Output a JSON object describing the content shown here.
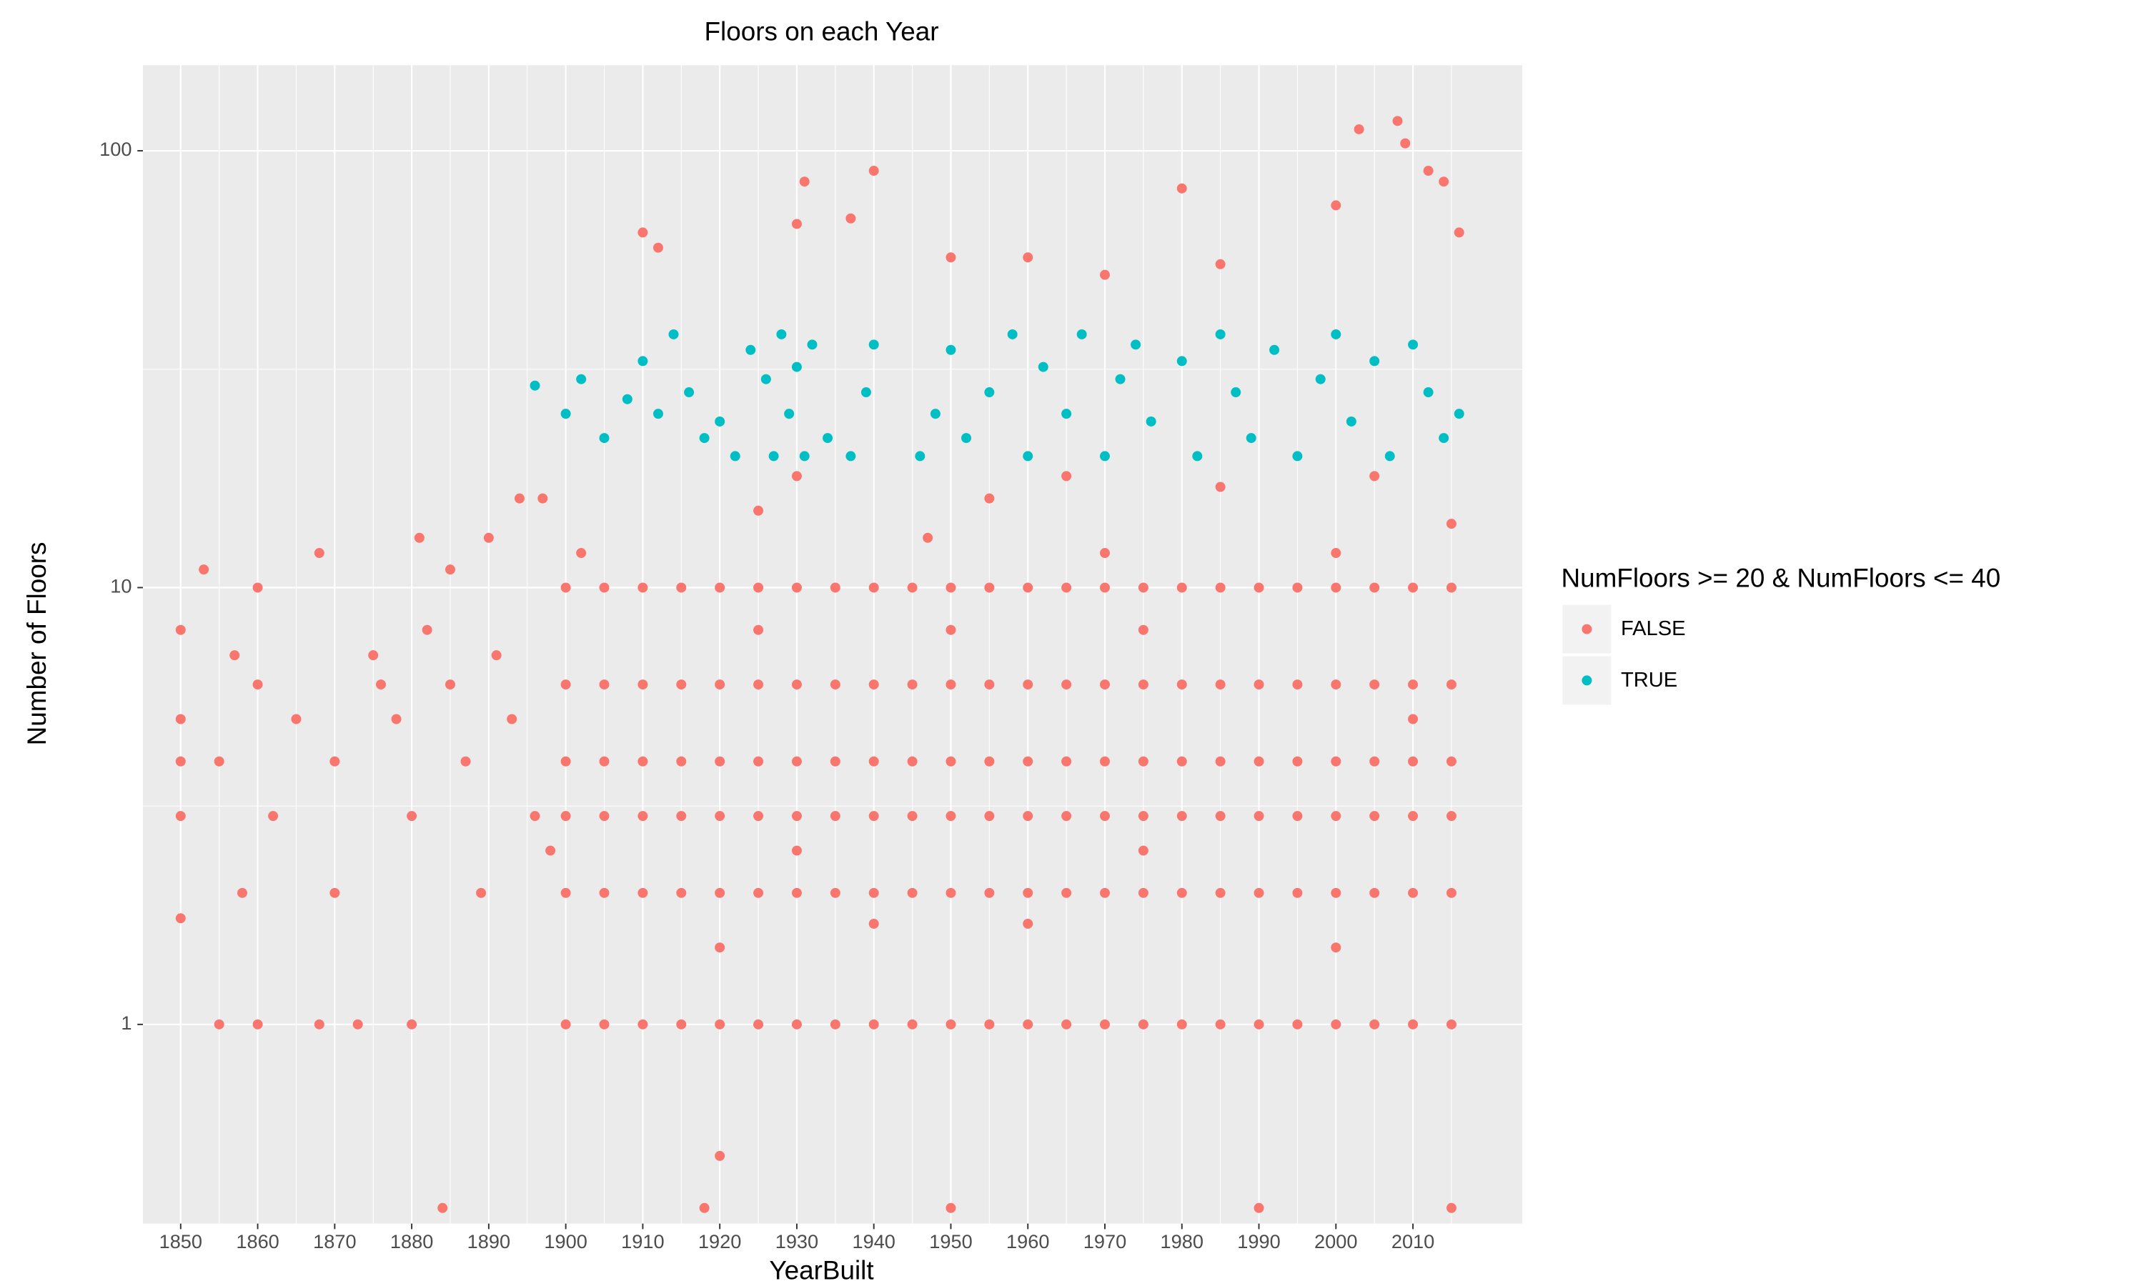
{
  "chart_data": {
    "type": "scatter",
    "title": "Floors on each Year",
    "x_label": "YearBuilt",
    "y_label": "Number of Floors",
    "legend_title": "NumFloors >= 20 & NumFloors <= 40",
    "legend_position": "right",
    "grid": true,
    "y_log": true,
    "xlim": [
      1845.1,
      2024.2
    ],
    "ylim": [
      0.35,
      157
    ],
    "xticks": [
      1850,
      1860,
      1870,
      1880,
      1890,
      1900,
      1910,
      1920,
      1930,
      1940,
      1950,
      1960,
      1970,
      1980,
      1990,
      2000,
      2010
    ],
    "yticks": [
      1,
      10,
      100
    ],
    "series": [
      {
        "name": "FALSE",
        "color": "#F8766D",
        "x": [
          1850,
          1850,
          1850,
          1850,
          1850,
          1853,
          1855,
          1855,
          1857,
          1858,
          1860,
          1860,
          1860,
          1862,
          1865,
          1868,
          1868,
          1870,
          1870,
          1873,
          1875,
          1876,
          1878,
          1880,
          1880,
          1881,
          1882,
          1885,
          1885,
          1887,
          1889,
          1890,
          1891,
          1893,
          1894,
          1896,
          1897,
          1898,
          1900,
          1905,
          1910,
          1915,
          1920,
          1925,
          1930,
          1935,
          1940,
          1945,
          1950,
          1955,
          1960,
          1965,
          1970,
          1975,
          1980,
          1985,
          1990,
          1995,
          2000,
          2005,
          2010,
          2015,
          1900,
          1905,
          1910,
          1915,
          1920,
          1925,
          1930,
          1935,
          1940,
          1945,
          1950,
          1955,
          1960,
          1965,
          1970,
          1975,
          1980,
          1985,
          1990,
          1995,
          2000,
          2005,
          2010,
          2015,
          1900,
          1905,
          1910,
          1915,
          1920,
          1925,
          1930,
          1935,
          1940,
          1945,
          1950,
          1955,
          1960,
          1965,
          1970,
          1975,
          1980,
          1985,
          1990,
          1995,
          2000,
          2005,
          2010,
          2015,
          1900,
          1905,
          1910,
          1915,
          1920,
          1925,
          1930,
          1935,
          1940,
          1945,
          1950,
          1955,
          1960,
          1965,
          1970,
          1975,
          1980,
          1985,
          1990,
          1995,
          2000,
          2005,
          2010,
          2015,
          1900,
          1905,
          1910,
          1915,
          1920,
          1925,
          1930,
          1935,
          1940,
          1945,
          1950,
          1955,
          1960,
          1965,
          1970,
          1975,
          1980,
          1985,
          1990,
          1995,
          2000,
          2005,
          2010,
          2015,
          1900,
          1905,
          1910,
          1915,
          1920,
          1925,
          1930,
          1935,
          1940,
          1945,
          1950,
          1955,
          1960,
          1965,
          1970,
          1975,
          1980,
          1985,
          1990,
          1995,
          2000,
          2005,
          2010,
          2015,
          1910,
          1912,
          1930,
          1931,
          1937,
          1940,
          1950,
          1960,
          1970,
          1980,
          1985,
          2000,
          2003,
          2008,
          2009,
          2012,
          2014,
          2016,
          1920,
          1884,
          1918,
          1950,
          1990,
          2015,
          1925,
          1930,
          1955,
          1965,
          1985,
          2005,
          2015,
          1902,
          1947,
          1920,
          1940,
          1960,
          2000,
          1975,
          1930,
          2010,
          1925,
          1950,
          1975,
          2000,
          1970
        ],
        "values": [
          8,
          5,
          4,
          3,
          1.75,
          11,
          1,
          4,
          7,
          2,
          10,
          1,
          6,
          3,
          5,
          12,
          1,
          4,
          2,
          1,
          7,
          6,
          5,
          1,
          3,
          13,
          8,
          11,
          6,
          4,
          2,
          13,
          7,
          5,
          16,
          3,
          16,
          2.5,
          1,
          1,
          1,
          1,
          1,
          1,
          1,
          1,
          1,
          1,
          1,
          1,
          1,
          1,
          1,
          1,
          1,
          1,
          1,
          1,
          1,
          1,
          1,
          1,
          2,
          2,
          2,
          2,
          2,
          2,
          2,
          2,
          2,
          2,
          2,
          2,
          2,
          2,
          2,
          2,
          2,
          2,
          2,
          2,
          2,
          2,
          2,
          2,
          3,
          3,
          3,
          3,
          3,
          3,
          3,
          3,
          3,
          3,
          3,
          3,
          3,
          3,
          3,
          3,
          3,
          3,
          3,
          3,
          3,
          3,
          3,
          3,
          4,
          4,
          4,
          4,
          4,
          4,
          4,
          4,
          4,
          4,
          4,
          4,
          4,
          4,
          4,
          4,
          4,
          4,
          4,
          4,
          4,
          4,
          4,
          4,
          6,
          6,
          6,
          6,
          6,
          6,
          6,
          6,
          6,
          6,
          6,
          6,
          6,
          6,
          6,
          6,
          6,
          6,
          6,
          6,
          6,
          6,
          6,
          6,
          10,
          10,
          10,
          10,
          10,
          10,
          10,
          10,
          10,
          10,
          10,
          10,
          10,
          10,
          10,
          10,
          10,
          10,
          10,
          10,
          10,
          10,
          10,
          10,
          65,
          60,
          68,
          85,
          70,
          90,
          57,
          57,
          52,
          82,
          55,
          75,
          112,
          117,
          104,
          90,
          85,
          65,
          0.5,
          0.38,
          0.38,
          0.38,
          0.38,
          0.38,
          15,
          18,
          16,
          18,
          17,
          18,
          14,
          12,
          13,
          1.5,
          1.7,
          1.7,
          1.5,
          2.5,
          2.5,
          5,
          8,
          8,
          8,
          12,
          12
        ]
      },
      {
        "name": "TRUE",
        "color": "#00BFC4",
        "x": [
          1896,
          1900,
          1902,
          1905,
          1908,
          1910,
          1912,
          1914,
          1916,
          1918,
          1920,
          1922,
          1924,
          1926,
          1927,
          1928,
          1929,
          1930,
          1931,
          1932,
          1934,
          1937,
          1939,
          1940,
          1946,
          1948,
          1950,
          1952,
          1955,
          1958,
          1960,
          1962,
          1965,
          1967,
          1970,
          1972,
          1974,
          1976,
          1980,
          1982,
          1985,
          1987,
          1989,
          1992,
          1995,
          1998,
          2000,
          2002,
          2005,
          2007,
          2010,
          2012,
          2014,
          2016
        ],
        "values": [
          29,
          25,
          30,
          22,
          27,
          33,
          25,
          38,
          28,
          22,
          24,
          20,
          35,
          30,
          20,
          38,
          25,
          32,
          20,
          36,
          22,
          20,
          28,
          36,
          20,
          25,
          35,
          22,
          28,
          38,
          20,
          32,
          25,
          38,
          20,
          30,
          36,
          24,
          33,
          20,
          38,
          28,
          22,
          35,
          20,
          30,
          38,
          24,
          33,
          20,
          36,
          28,
          22,
          25
        ]
      }
    ]
  }
}
